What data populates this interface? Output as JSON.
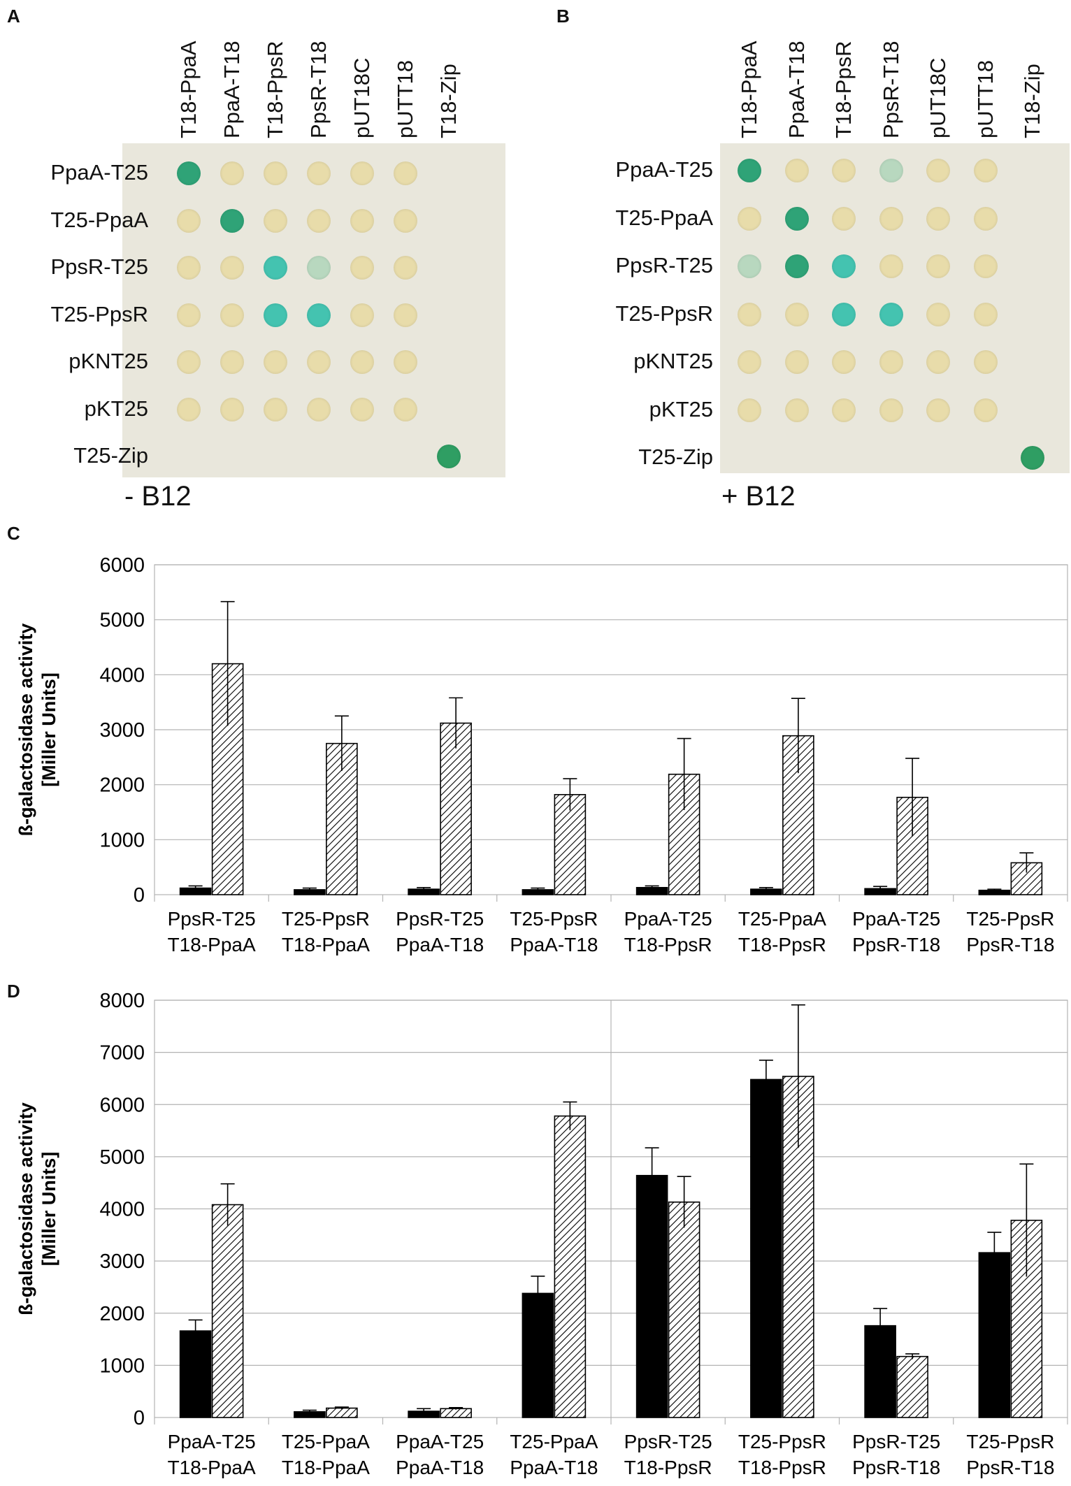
{
  "panels": {
    "a": {
      "letter": "A",
      "condition": "- B12",
      "columns": [
        "T18-PpaA",
        "PpaA-T18",
        "T18-PpsR",
        "PpsR-T18",
        "pUT18C",
        "pUTT18",
        "T18-Zip"
      ],
      "rows": [
        "PpaA-T25",
        "T25-PpaA",
        "PpsR-T25",
        "T25-PpsR",
        "pKNT25",
        "pKT25",
        "T25-Zip"
      ],
      "grid": [
        [
          "g",
          "n",
          "n",
          "n",
          "n",
          "n",
          "x"
        ],
        [
          "n",
          "g",
          "n",
          "n",
          "n",
          "n",
          "x"
        ],
        [
          "n",
          "n",
          "t",
          "w",
          "n",
          "n",
          "x"
        ],
        [
          "n",
          "n",
          "t",
          "t",
          "n",
          "n",
          "x"
        ],
        [
          "n",
          "n",
          "n",
          "n",
          "n",
          "n",
          "x"
        ],
        [
          "n",
          "n",
          "n",
          "n",
          "n",
          "n",
          "x"
        ],
        [
          "x",
          "x",
          "x",
          "x",
          "x",
          "x",
          "d"
        ]
      ]
    },
    "b": {
      "letter": "B",
      "condition": "+ B12",
      "columns": [
        "T18-PpaA",
        "PpaA-T18",
        "T18-PpsR",
        "PpsR-T18",
        "pUT18C",
        "pUTT18",
        "T18-Zip"
      ],
      "rows": [
        "PpaA-T25",
        "T25-PpaA",
        "PpsR-T25",
        "T25-PpsR",
        "pKNT25",
        "pKT25",
        "T25-Zip"
      ],
      "grid": [
        [
          "g",
          "n",
          "n",
          "w",
          "n",
          "n",
          "x"
        ],
        [
          "n",
          "g",
          "n",
          "n",
          "n",
          "n",
          "x"
        ],
        [
          "w",
          "g",
          "t",
          "n",
          "n",
          "n",
          "x"
        ],
        [
          "n",
          "n",
          "t",
          "t",
          "n",
          "n",
          "x"
        ],
        [
          "n",
          "n",
          "n",
          "n",
          "n",
          "n",
          "x"
        ],
        [
          "n",
          "n",
          "n",
          "n",
          "n",
          "n",
          "x"
        ],
        [
          "x",
          "x",
          "x",
          "x",
          "x",
          "x",
          "d"
        ]
      ]
    }
  },
  "colors": {
    "plate": "#e9e7dc",
    "n": "#e8dcaa",
    "g": "#2fa377",
    "t": "#44c3b0",
    "w": "#b8d8bf",
    "d": "#2f9e63",
    "bar_solid": "#000000",
    "gridline": "#b3b3b3"
  },
  "chart_data": [
    {
      "letter": "C",
      "type": "bar",
      "ylabel": [
        "ß-galactosidase activity",
        "[Miller Units]"
      ],
      "ylim": [
        0,
        6000
      ],
      "yticks": [
        "0",
        "1000",
        "2000",
        "3000",
        "4000",
        "5000",
        "6000"
      ],
      "categories": [
        [
          "PpsR-T25",
          "T18-PpaA"
        ],
        [
          "T25-PpsR",
          "T18-PpaA"
        ],
        [
          "PpsR-T25",
          "PpaA-T18"
        ],
        [
          "T25-PpsR",
          "PpaA-T18"
        ],
        [
          "PpaA-T25",
          "T18-PpsR"
        ],
        [
          "T25-PpaA",
          "T18-PpsR"
        ],
        [
          "PpaA-T25",
          "PpsR-T18"
        ],
        [
          "T25-PpsR",
          "PpsR-T18"
        ]
      ],
      "series": [
        {
          "name": "solid",
          "values": [
            120,
            90,
            100,
            90,
            130,
            100,
            110,
            80
          ],
          "errors": [
            40,
            30,
            30,
            30,
            30,
            30,
            40,
            20
          ]
        },
        {
          "name": "hatched",
          "values": [
            4200,
            2750,
            3120,
            1820,
            2190,
            2890,
            1770,
            580
          ],
          "errors": [
            1130,
            500,
            460,
            290,
            650,
            680,
            710,
            180
          ]
        }
      ]
    },
    {
      "letter": "D",
      "type": "bar",
      "ylabel": [
        "ß-galactosidase activity",
        "[Miller Units]"
      ],
      "ylim": [
        0,
        8000
      ],
      "yticks": [
        "0",
        "1000",
        "2000",
        "3000",
        "4000",
        "5000",
        "6000",
        "7000",
        "8000"
      ],
      "categories": [
        [
          "PpaA-T25",
          "T18-PpaA"
        ],
        [
          "T25-PpaA",
          "T18-PpaA"
        ],
        [
          "PpaA-T25",
          "PpaA-T18"
        ],
        [
          "T25-PpaA",
          "PpaA-T18"
        ],
        [
          "PpsR-T25",
          "T18-PpsR"
        ],
        [
          "T25-PpsR",
          "T18-PpsR"
        ],
        [
          "PpsR-T25",
          "PpsR-T18"
        ],
        [
          "T25-PpsR",
          "PpsR-T18"
        ]
      ],
      "divider_after_category": 4,
      "series": [
        {
          "name": "solid",
          "values": [
            1660,
            110,
            120,
            2380,
            4640,
            6480,
            1760,
            3160
          ],
          "errors": [
            210,
            30,
            50,
            330,
            530,
            370,
            330,
            390
          ]
        },
        {
          "name": "hatched",
          "values": [
            4080,
            180,
            170,
            5780,
            4130,
            6540,
            1170,
            3780
          ],
          "errors": [
            400,
            20,
            20,
            270,
            490,
            1370,
            50,
            1080
          ]
        }
      ]
    }
  ]
}
